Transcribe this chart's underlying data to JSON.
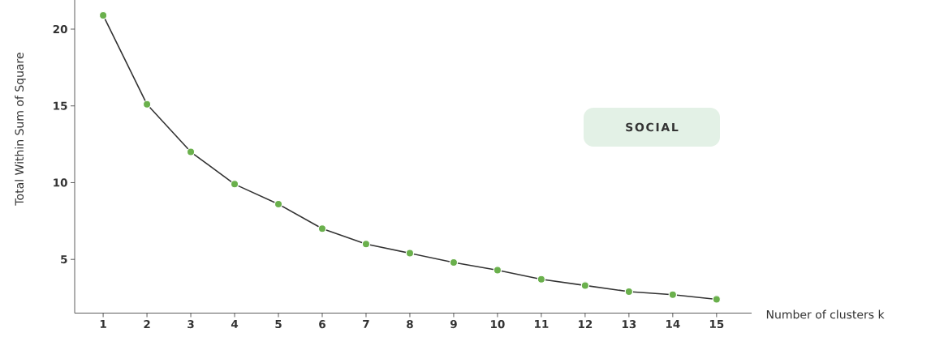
{
  "chart_data": {
    "type": "line",
    "xlabel": "Number of clusters k",
    "ylabel": "Total Within Sum of Square",
    "annotations": [
      "SOCIAL"
    ],
    "x": [
      1,
      2,
      3,
      4,
      5,
      6,
      7,
      8,
      9,
      10,
      11,
      12,
      13,
      14,
      15
    ],
    "series": [
      {
        "color": "#6ab04c",
        "values": [
          20.9,
          15.1,
          12.0,
          9.9,
          8.6,
          7.0,
          6.0,
          5.4,
          4.8,
          4.3,
          3.7,
          3.3,
          2.9,
          2.7,
          2.4
        ]
      }
    ],
    "xlim": [
      0.35,
      15.8
    ],
    "ylim": [
      1.5,
      21.9
    ],
    "xticks": [
      1,
      2,
      3,
      4,
      5,
      6,
      7,
      8,
      9,
      10,
      11,
      12,
      13,
      14,
      15
    ],
    "yticks": [
      5,
      10,
      15,
      20
    ],
    "grid": false,
    "marker": "circle",
    "line_style": "solid"
  }
}
